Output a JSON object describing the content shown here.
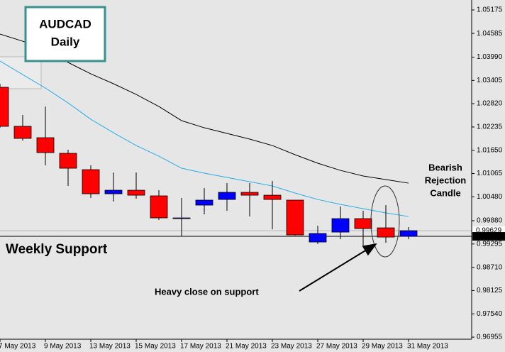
{
  "chart_data": {
    "type": "candlestick",
    "title_lines": [
      "AUDCAD",
      "Daily"
    ],
    "categories": [
      "7 May 2013",
      null,
      "9 May 2013",
      null,
      "13 May 2013",
      null,
      "15 May 2013",
      null,
      "17 May 2013",
      null,
      "21 May 2013",
      null,
      "23 May 2013",
      null,
      "27 May 2013",
      null,
      "29 May 2013",
      null,
      "31 May 2013"
    ],
    "open": [
      1.03232,
      1.02251,
      1.01966,
      1.01573,
      1.01163,
      1.00557,
      1.00646,
      1.00504,
      0.99951,
      1.00272,
      1.00414,
      1.00593,
      1.00521,
      1.00397,
      0.99345,
      0.99594,
      0.99933,
      0.99701,
      0.99487
    ],
    "high": [
      1.03321,
      1.02536,
      1.0275,
      1.01662,
      1.0127,
      1.01092,
      1.01092,
      1.00646,
      1.0045,
      1.007,
      1.00824,
      1.00824,
      1.00878,
      1.00397,
      0.99755,
      1.00236,
      1.00129,
      1.00272,
      0.99719
    ],
    "low": [
      1.02215,
      1.01894,
      1.0127,
      1.00753,
      1.0045,
      1.00361,
      1.00432,
      0.99897,
      0.99487,
      1.0004,
      1.00129,
      0.99986,
      0.99666,
      0.99505,
      0.99291,
      0.99416,
      0.99255,
      0.99327,
      0.99416
    ],
    "close": [
      1.02251,
      1.01948,
      1.01591,
      1.01199,
      1.00557,
      1.00646,
      1.00521,
      0.99951,
      0.99951,
      1.00397,
      1.00593,
      1.00521,
      1.00414,
      0.99523,
      0.99559,
      0.99933,
      0.99683,
      0.99469,
      0.9963
    ],
    "up_color": "#0000ff",
    "down_color": "#ff0000",
    "lines": [
      {
        "color": "#000000",
        "values": [
          1.04569,
          1.0439,
          1.04177,
          1.03856,
          1.0357,
          1.03321,
          1.03053,
          1.0275,
          1.02394,
          1.02215,
          1.02073,
          1.0193,
          1.01769,
          1.01538,
          1.01324,
          1.01145,
          1.01003,
          1.00914,
          1.00824
        ]
      },
      {
        "color": "#25aee6",
        "values": [
          1.03891,
          1.03552,
          1.03214,
          1.02839,
          1.02429,
          1.0209,
          1.01769,
          1.01502,
          1.01199,
          1.01074,
          1.00967,
          1.0086,
          1.00753,
          1.00575,
          1.00414,
          1.0029,
          1.00183,
          1.00076,
          0.99986
        ]
      }
    ],
    "ylim": [
      0.96867,
      1.05425
    ],
    "yticks": [
      1.05175,
      1.04585,
      {
        "value": 1.0399,
        "label": "1.03990"
      },
      1.03405,
      {
        "value": 1.0282,
        "label": "1.02820"
      },
      1.02235,
      {
        "value": 1.0165,
        "label": "1.01650"
      },
      1.01065,
      {
        "value": 1.0048,
        "label": "1.00480"
      },
      {
        "value": 0.9988,
        "label": "0.99880"
      },
      0.99295,
      {
        "value": 0.9871,
        "label": "0.98710"
      },
      0.98125,
      {
        "value": 0.9754,
        "label": "0.97540"
      },
      0.96955
    ],
    "grid": false,
    "price_labels": [
      0.99629,
      0.99487
    ],
    "support_level": 0.99487,
    "support_label": "Weekly Support",
    "annotation_rejection": [
      "Bearish",
      "Rejection",
      "Candle"
    ],
    "annotation_close": "Heavy close on support"
  }
}
